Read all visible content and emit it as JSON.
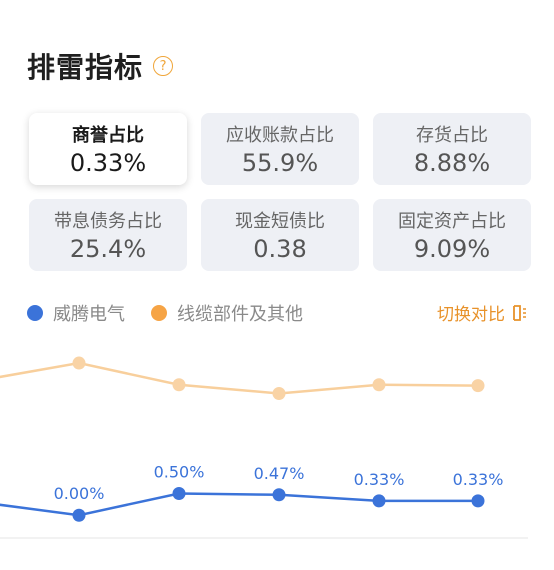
{
  "header": {
    "title": "排雷指标",
    "help_icon": "question-circle-icon",
    "help_glyph": "?"
  },
  "metrics": [
    {
      "label": "商誉占比",
      "value": "0.33%",
      "selected": true
    },
    {
      "label": "应收账款占比",
      "value": "55.9%",
      "selected": false
    },
    {
      "label": "存货占比",
      "value": "8.88%",
      "selected": false
    },
    {
      "label": "带息债务占比",
      "value": "25.4%",
      "selected": false
    },
    {
      "label": "现金短债比",
      "value": "0.38",
      "selected": false
    },
    {
      "label": "固定资产占比",
      "value": "9.09%",
      "selected": false
    }
  ],
  "legend": {
    "series_a": {
      "name": "威腾电气",
      "color": "#3b73d9"
    },
    "series_b": {
      "name": "线缆部件及其他",
      "color": "#f6a445"
    },
    "switch_label": "切换对比",
    "switch_icon": "switch-compare-icon"
  },
  "chart_data": {
    "type": "line",
    "ylim": [
      -0.8,
      3.8
    ],
    "series": [
      {
        "name": "威腾电气",
        "color": "#3b73d9",
        "values": [
          0.3,
          0.0,
          0.5,
          0.47,
          0.33,
          0.33
        ],
        "labels": [
          "",
          "0.00%",
          "0.50%",
          "0.47%",
          "0.33%",
          "0.33%"
        ]
      },
      {
        "name": "线缆部件及其他",
        "color": "#f6a445",
        "values": [
          3.1,
          3.5,
          3.0,
          2.8,
          3.0,
          2.98
        ],
        "labels": [
          "",
          "",
          "",
          "",
          "",
          ""
        ]
      }
    ]
  }
}
